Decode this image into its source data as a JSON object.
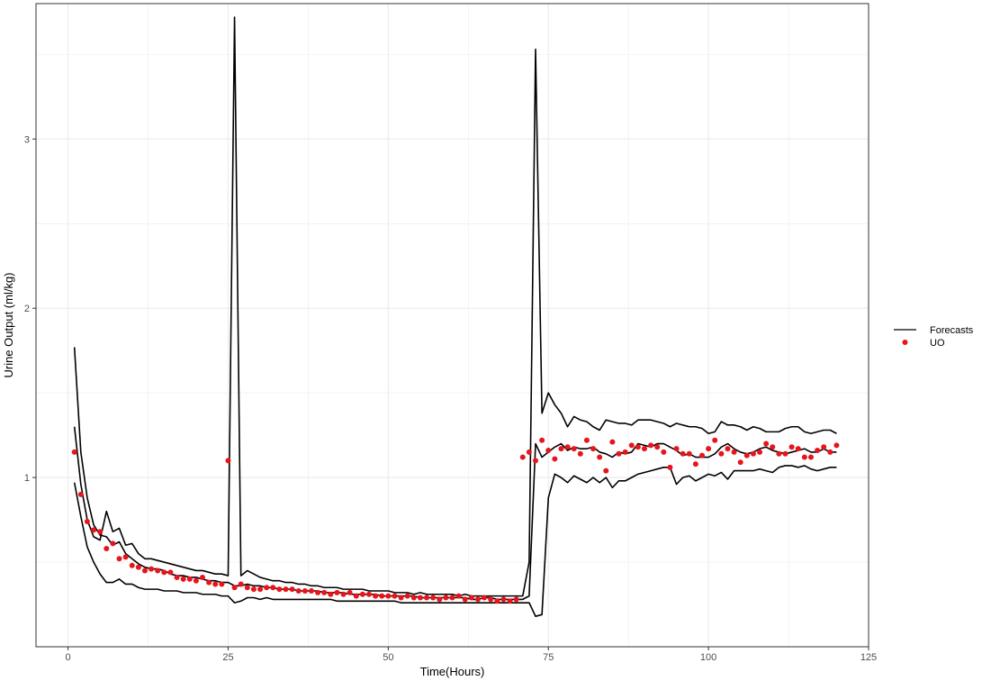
{
  "chart_data": {
    "type": "line",
    "title": "",
    "xlabel": "Time(Hours)",
    "ylabel": "Urine Output (ml/kg)",
    "xlim": [
      -5,
      125
    ],
    "ylim": [
      0,
      3.8
    ],
    "x_ticks": [
      0,
      25,
      50,
      75,
      100,
      125
    ],
    "x_tick_labels": [
      "0",
      "25",
      "50",
      "75",
      "100",
      "125"
    ],
    "y_ticks": [
      1,
      2,
      3
    ],
    "y_tick_labels": [
      "1",
      "2",
      "3"
    ],
    "grid": true,
    "legend_position": "right",
    "legend": [
      {
        "label": "Forecasts",
        "symbol": "line",
        "color": "#000000"
      },
      {
        "label": "UO",
        "symbol": "point",
        "color": "#e8141c"
      }
    ],
    "colors": {
      "forecast": "#000000",
      "uo": "#e8141c",
      "grid": "#ebebeb"
    },
    "x": [
      1,
      2,
      3,
      4,
      5,
      6,
      7,
      8,
      9,
      10,
      11,
      12,
      13,
      14,
      15,
      16,
      17,
      18,
      19,
      20,
      21,
      22,
      23,
      24,
      25,
      26,
      27,
      28,
      29,
      30,
      31,
      32,
      33,
      34,
      35,
      36,
      37,
      38,
      39,
      40,
      41,
      42,
      43,
      44,
      45,
      46,
      47,
      48,
      49,
      50,
      51,
      52,
      53,
      54,
      55,
      56,
      57,
      58,
      59,
      60,
      61,
      62,
      63,
      64,
      65,
      66,
      67,
      68,
      69,
      70,
      71,
      72,
      73,
      74,
      75,
      76,
      77,
      78,
      79,
      80,
      81,
      82,
      83,
      84,
      85,
      86,
      87,
      88,
      89,
      90,
      91,
      92,
      93,
      94,
      95,
      96,
      97,
      98,
      99,
      100,
      101,
      102,
      103,
      104,
      105,
      106,
      107,
      108,
      109,
      110,
      111,
      112,
      113,
      114,
      115,
      116,
      117,
      118,
      119,
      120
    ],
    "forecast_series": [
      {
        "values": [
          1.3,
          0.96,
          0.75,
          0.65,
          0.63,
          0.8,
          0.68,
          0.7,
          0.6,
          0.61,
          0.55,
          0.52,
          0.52,
          0.51,
          0.5,
          0.49,
          0.48,
          0.47,
          0.46,
          0.45,
          0.45,
          0.44,
          0.43,
          0.43,
          0.42,
          3.72,
          0.42,
          0.45,
          0.43,
          0.41,
          0.4,
          0.39,
          0.39,
          0.38,
          0.38,
          0.37,
          0.37,
          0.36,
          0.36,
          0.35,
          0.35,
          0.35,
          0.34,
          0.34,
          0.34,
          0.34,
          0.33,
          0.33,
          0.33,
          0.33,
          0.32,
          0.32,
          0.32,
          0.31,
          0.32,
          0.31,
          0.31,
          0.31,
          0.31,
          0.31,
          0.3,
          0.31,
          0.3,
          0.3,
          0.3,
          0.3,
          0.3,
          0.3,
          0.3,
          0.3,
          0.3,
          0.5,
          3.53,
          1.38,
          1.5,
          1.43,
          1.38,
          1.3,
          1.36,
          1.34,
          1.33,
          1.3,
          1.28,
          1.34,
          1.33,
          1.32,
          1.32,
          1.31,
          1.34,
          1.34,
          1.34,
          1.33,
          1.32,
          1.3,
          1.32,
          1.31,
          1.3,
          1.3,
          1.29,
          1.26,
          1.27,
          1.33,
          1.31,
          1.31,
          1.3,
          1.28,
          1.3,
          1.29,
          1.27,
          1.27,
          1.27,
          1.29,
          1.3,
          1.3,
          1.27,
          1.26,
          1.27,
          1.28,
          1.28,
          1.26
        ]
      },
      {
        "values": [
          1.77,
          1.15,
          0.88,
          0.72,
          0.66,
          0.65,
          0.6,
          0.62,
          0.55,
          0.52,
          0.49,
          0.47,
          0.46,
          0.46,
          0.45,
          0.43,
          0.42,
          0.42,
          0.41,
          0.41,
          0.4,
          0.39,
          0.39,
          0.38,
          0.38,
          0.36,
          0.36,
          0.37,
          0.36,
          0.36,
          0.35,
          0.35,
          0.34,
          0.34,
          0.34,
          0.33,
          0.33,
          0.33,
          0.33,
          0.32,
          0.32,
          0.32,
          0.32,
          0.31,
          0.31,
          0.31,
          0.31,
          0.31,
          0.3,
          0.3,
          0.3,
          0.3,
          0.3,
          0.3,
          0.29,
          0.29,
          0.29,
          0.29,
          0.29,
          0.29,
          0.29,
          0.29,
          0.28,
          0.28,
          0.29,
          0.29,
          0.28,
          0.28,
          0.28,
          0.28,
          0.28,
          0.3,
          1.2,
          1.12,
          1.15,
          1.18,
          1.2,
          1.16,
          1.18,
          1.17,
          1.17,
          1.18,
          1.15,
          1.14,
          1.12,
          1.15,
          1.14,
          1.15,
          1.2,
          1.19,
          1.18,
          1.2,
          1.2,
          1.18,
          1.16,
          1.13,
          1.14,
          1.12,
          1.12,
          1.12,
          1.14,
          1.18,
          1.2,
          1.17,
          1.15,
          1.14,
          1.15,
          1.17,
          1.18,
          1.16,
          1.15,
          1.14,
          1.15,
          1.16,
          1.17,
          1.15,
          1.15,
          1.17,
          1.15,
          1.15
        ]
      },
      {
        "values": [
          0.97,
          0.77,
          0.59,
          0.5,
          0.43,
          0.38,
          0.38,
          0.4,
          0.37,
          0.37,
          0.35,
          0.34,
          0.34,
          0.34,
          0.33,
          0.33,
          0.33,
          0.32,
          0.32,
          0.32,
          0.31,
          0.31,
          0.31,
          0.3,
          0.3,
          0.26,
          0.27,
          0.29,
          0.29,
          0.28,
          0.29,
          0.28,
          0.28,
          0.28,
          0.28,
          0.28,
          0.28,
          0.28,
          0.28,
          0.28,
          0.28,
          0.27,
          0.27,
          0.27,
          0.27,
          0.27,
          0.27,
          0.27,
          0.27,
          0.27,
          0.27,
          0.26,
          0.26,
          0.26,
          0.26,
          0.26,
          0.26,
          0.26,
          0.26,
          0.26,
          0.26,
          0.26,
          0.26,
          0.26,
          0.26,
          0.26,
          0.26,
          0.26,
          0.26,
          0.26,
          0.26,
          0.26,
          0.18,
          0.19,
          0.88,
          1.02,
          1.0,
          0.97,
          1.01,
          0.99,
          0.97,
          1.0,
          0.97,
          1.0,
          0.94,
          0.98,
          0.98,
          1.0,
          1.02,
          1.03,
          1.04,
          1.05,
          1.06,
          1.06,
          0.96,
          1.0,
          1.01,
          0.98,
          1.0,
          1.02,
          1.01,
          1.03,
          0.99,
          1.04,
          1.04,
          1.04,
          1.04,
          1.05,
          1.04,
          1.03,
          1.06,
          1.07,
          1.07,
          1.06,
          1.07,
          1.05,
          1.04,
          1.05,
          1.06,
          1.06
        ]
      }
    ],
    "uo_points": [
      [
        1,
        1.15
      ],
      [
        2,
        0.9
      ],
      [
        3,
        0.74
      ],
      [
        4,
        0.69
      ],
      [
        5,
        0.68
      ],
      [
        6,
        0.58
      ],
      [
        7,
        0.61
      ],
      [
        8,
        0.52
      ],
      [
        9,
        0.53
      ],
      [
        10,
        0.48
      ],
      [
        11,
        0.47
      ],
      [
        12,
        0.45
      ],
      [
        13,
        0.46
      ],
      [
        14,
        0.45
      ],
      [
        15,
        0.44
      ],
      [
        16,
        0.44
      ],
      [
        17,
        0.41
      ],
      [
        18,
        0.4
      ],
      [
        19,
        0.4
      ],
      [
        20,
        0.39
      ],
      [
        21,
        0.41
      ],
      [
        22,
        0.38
      ],
      [
        23,
        0.37
      ],
      [
        24,
        0.37
      ],
      [
        25,
        1.1
      ],
      [
        26,
        0.35
      ],
      [
        27,
        0.37
      ],
      [
        28,
        0.35
      ],
      [
        29,
        0.34
      ],
      [
        30,
        0.34
      ],
      [
        31,
        0.35
      ],
      [
        32,
        0.35
      ],
      [
        33,
        0.34
      ],
      [
        34,
        0.34
      ],
      [
        35,
        0.34
      ],
      [
        36,
        0.33
      ],
      [
        37,
        0.33
      ],
      [
        38,
        0.33
      ],
      [
        39,
        0.32
      ],
      [
        40,
        0.32
      ],
      [
        41,
        0.31
      ],
      [
        42,
        0.32
      ],
      [
        43,
        0.31
      ],
      [
        44,
        0.32
      ],
      [
        45,
        0.3
      ],
      [
        46,
        0.31
      ],
      [
        47,
        0.31
      ],
      [
        48,
        0.3
      ],
      [
        49,
        0.3
      ],
      [
        50,
        0.3
      ],
      [
        51,
        0.3
      ],
      [
        52,
        0.29
      ],
      [
        53,
        0.3
      ],
      [
        54,
        0.29
      ],
      [
        55,
        0.29
      ],
      [
        56,
        0.29
      ],
      [
        57,
        0.29
      ],
      [
        58,
        0.28
      ],
      [
        59,
        0.29
      ],
      [
        60,
        0.29
      ],
      [
        61,
        0.3
      ],
      [
        62,
        0.28
      ],
      [
        63,
        0.29
      ],
      [
        64,
        0.28
      ],
      [
        65,
        0.29
      ],
      [
        66,
        0.28
      ],
      [
        67,
        0.27
      ],
      [
        68,
        0.28
      ],
      [
        69,
        0.27
      ],
      [
        70,
        0.28
      ],
      [
        71,
        1.12
      ],
      [
        72,
        1.15
      ],
      [
        73,
        1.1
      ],
      [
        74,
        1.22
      ],
      [
        75,
        1.16
      ],
      [
        76,
        1.11
      ],
      [
        77,
        1.17
      ],
      [
        78,
        1.18
      ],
      [
        79,
        1.17
      ],
      [
        80,
        1.14
      ],
      [
        81,
        1.22
      ],
      [
        82,
        1.17
      ],
      [
        83,
        1.12
      ],
      [
        84,
        1.04
      ],
      [
        85,
        1.21
      ],
      [
        86,
        1.14
      ],
      [
        87,
        1.15
      ],
      [
        88,
        1.19
      ],
      [
        89,
        1.18
      ],
      [
        90,
        1.17
      ],
      [
        91,
        1.19
      ],
      [
        92,
        1.18
      ],
      [
        93,
        1.15
      ],
      [
        94,
        1.06
      ],
      [
        95,
        1.17
      ],
      [
        96,
        1.14
      ],
      [
        97,
        1.14
      ],
      [
        98,
        1.08
      ],
      [
        99,
        1.13
      ],
      [
        100,
        1.17
      ],
      [
        101,
        1.22
      ],
      [
        102,
        1.14
      ],
      [
        103,
        1.17
      ],
      [
        104,
        1.15
      ],
      [
        105,
        1.09
      ],
      [
        106,
        1.13
      ],
      [
        107,
        1.14
      ],
      [
        108,
        1.15
      ],
      [
        109,
        1.2
      ],
      [
        110,
        1.18
      ],
      [
        111,
        1.14
      ],
      [
        112,
        1.14
      ],
      [
        113,
        1.18
      ],
      [
        114,
        1.17
      ],
      [
        115,
        1.12
      ],
      [
        116,
        1.12
      ],
      [
        117,
        1.16
      ],
      [
        118,
        1.18
      ],
      [
        119,
        1.15
      ],
      [
        120,
        1.19
      ]
    ]
  }
}
